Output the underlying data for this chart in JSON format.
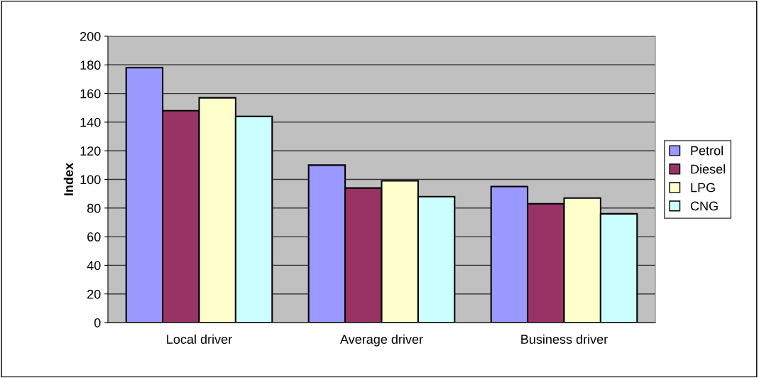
{
  "chart_data": {
    "type": "bar",
    "ylabel": "Index",
    "categories": [
      "Local driver",
      "Average driver",
      "Business driver"
    ],
    "series": [
      {
        "name": "Petrol",
        "color": "#9999ff",
        "values": [
          178,
          110,
          95
        ]
      },
      {
        "name": "Diesel",
        "color": "#993366",
        "values": [
          148,
          94,
          83
        ]
      },
      {
        "name": "LPG",
        "color": "#ffffcc",
        "values": [
          157,
          99,
          87
        ]
      },
      {
        "name": "CNG",
        "color": "#ccffff",
        "values": [
          144,
          88,
          76
        ]
      }
    ],
    "ylim": [
      0,
      200
    ],
    "yticks": [
      0,
      20,
      40,
      60,
      80,
      100,
      120,
      140,
      160,
      180,
      200
    ],
    "grid": "y",
    "legend": "right"
  }
}
